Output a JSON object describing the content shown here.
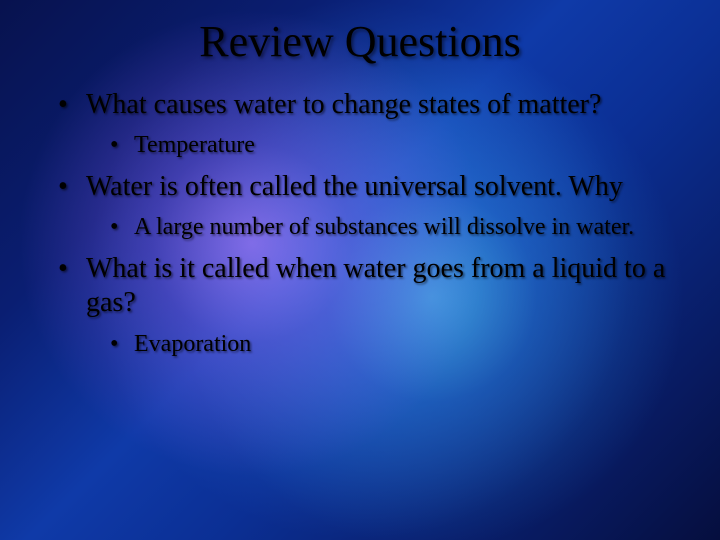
{
  "slide": {
    "title": "Review Questions",
    "background": {
      "base_gradient": [
        "#07124e",
        "#0a1e72",
        "#0f3aa8",
        "#0b2f94",
        "#081a60",
        "#050e3e"
      ],
      "glow_colors": [
        "#b478ff",
        "#5adcff",
        "#4696ff"
      ]
    },
    "title_style": {
      "font_size_pt": 33,
      "font_family": "Georgia",
      "color": "#000000",
      "shadow_color": "rgba(0,0,0,0.5)"
    },
    "body_style": {
      "lvl1_font_size_pt": 21,
      "lvl2_font_size_pt": 18,
      "text_color": "#000000",
      "bullet_color": "#000000",
      "shadow_color": "rgba(0,0,0,0.55)"
    },
    "items": [
      {
        "text": "What causes water to change states of matter?",
        "sub": [
          {
            "text": "Temperature"
          }
        ]
      },
      {
        "text": "Water is often called the universal solvent.  Why",
        "sub": [
          {
            "text": "A large number of substances will dissolve in water."
          }
        ]
      },
      {
        "text": "What is it called when water goes from a liquid to a gas?",
        "sub": [
          {
            "text": "Evaporation"
          }
        ]
      }
    ]
  }
}
